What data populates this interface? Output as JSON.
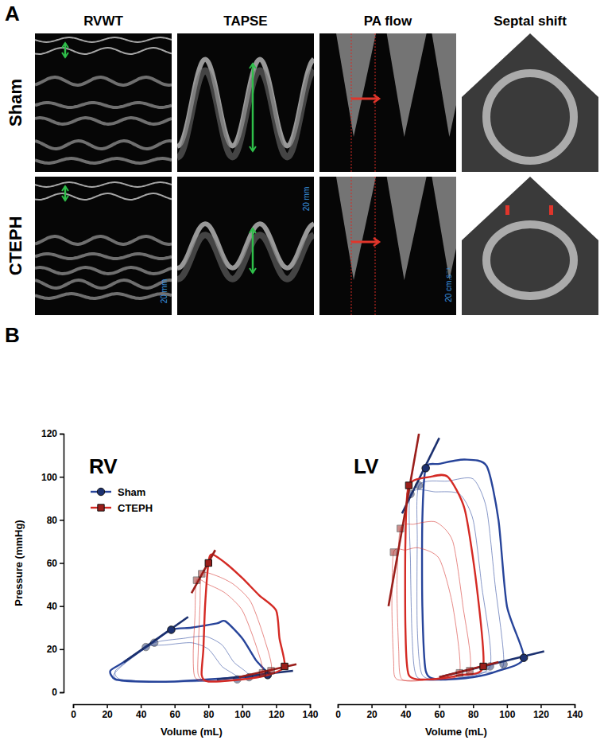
{
  "panel_a": {
    "label": "A",
    "columns": [
      "RVWT",
      "TAPSE",
      "PA flow",
      "Septal shift"
    ],
    "rows": [
      "Sham",
      "CTEPH"
    ],
    "scale_labels": [
      "20 mm",
      "20 mm",
      "20 cm.s⁻¹"
    ]
  },
  "panel_b": {
    "label": "B"
  },
  "chart_data": [
    {
      "type": "line",
      "title": "RV",
      "x_label": "Volume (mL)",
      "y_label": "Pressure (mmHg)",
      "xlim": [
        0,
        140
      ],
      "xticks": [
        0,
        20,
        40,
        60,
        80,
        100,
        120,
        140
      ],
      "ylim": [
        0,
        120
      ],
      "yticks": [
        0,
        20,
        40,
        60,
        80,
        100,
        120
      ],
      "legend": "top-left",
      "series": [
        {
          "name": "Sham",
          "color": "#27449a",
          "marker": "circle",
          "loops": [
            {
              "x": [
                115,
                108,
                100,
                90,
                85,
                70,
                58,
                45,
                30,
                22,
                25,
                40,
                60,
                80,
                100
              ],
              "values": [
                8,
                15,
                25,
                33,
                32,
                30,
                29,
                22,
                14,
                10,
                6,
                5,
                5,
                6,
                7
              ]
            },
            {
              "x": [
                104,
                95,
                88,
                78,
                65,
                48,
                35,
                25,
                28,
                50,
                75
              ],
              "values": [
                7,
                14,
                22,
                26,
                25,
                23,
                16,
                10,
                6,
                5,
                5
              ]
            },
            {
              "x": [
                97,
                88,
                80,
                70,
                55,
                43,
                30,
                24,
                30,
                60
              ],
              "values": [
                6,
                12,
                20,
                23,
                22,
                21,
                13,
                8,
                5,
                5
              ]
            }
          ],
          "espvr": {
            "x": [
              30,
              68
            ],
            "values": [
              14,
              35
            ]
          },
          "edpvr": {
            "x": [
              85,
              130
            ],
            "values": [
              6,
              10
            ]
          },
          "es_points": {
            "x": [
              58,
              48,
              43
            ],
            "values": [
              29,
              23,
              21
            ]
          },
          "ed_points": {
            "x": [
              115,
              104,
              97
            ],
            "values": [
              8,
              7,
              6
            ]
          }
        },
        {
          "name": "CTEPH",
          "color": "#d42a24",
          "marker": "square",
          "loops": [
            {
              "x": [
                125,
                122,
                120,
                110,
                100,
                90,
                82,
                80,
                78,
                77,
                76,
                80,
                100,
                115
              ],
              "values": [
                12,
                25,
                38,
                45,
                53,
                60,
                64,
                60,
                40,
                20,
                8,
                5,
                6,
                8
              ]
            },
            {
              "x": [
                117,
                113,
                105,
                95,
                85,
                76,
                75,
                74,
                74,
                80,
                100
              ],
              "values": [
                10,
                25,
                42,
                50,
                54,
                55,
                40,
                20,
                8,
                5,
                6
              ]
            },
            {
              "x": [
                112,
                108,
                100,
                90,
                80,
                73,
                72,
                71,
                72,
                80,
                100
              ],
              "values": [
                9,
                22,
                38,
                46,
                50,
                52,
                35,
                18,
                7,
                5,
                6
              ]
            }
          ],
          "espvr": {
            "x": [
              70,
              84
            ],
            "values": [
              46,
              66
            ]
          },
          "edpvr": {
            "x": [
              98,
              132
            ],
            "values": [
              7,
              13
            ]
          },
          "es_points": {
            "x": [
              80,
              76,
              73
            ],
            "values": [
              60,
              55,
              52
            ]
          },
          "ed_points": {
            "x": [
              125,
              117,
              112
            ],
            "values": [
              12,
              10,
              9
            ]
          }
        }
      ]
    },
    {
      "type": "line",
      "title": "LV",
      "x_label": "Volume (mL)",
      "xlim": [
        0,
        140
      ],
      "xticks": [
        0,
        20,
        40,
        60,
        80,
        100,
        120,
        140
      ],
      "ylim": [
        0,
        120
      ],
      "tick_labels": "x",
      "series": [
        {
          "name": "Sham",
          "color": "#27449a",
          "marker": "circle",
          "loops": [
            {
              "x": [
                110,
                100,
                95,
                88,
                75,
                60,
                52,
                50,
                50,
                52,
                60,
                80,
                95
              ],
              "values": [
                16,
                40,
                80,
                105,
                108,
                106,
                104,
                80,
                40,
                10,
                6,
                7,
                10
              ]
            },
            {
              "x": [
                98,
                93,
                88,
                80,
                65,
                48,
                47,
                47,
                50,
                65,
                85
              ],
              "values": [
                13,
                50,
                85,
                99,
                98,
                96,
                70,
                30,
                8,
                6,
                9
              ]
            },
            {
              "x": [
                90,
                85,
                80,
                72,
                58,
                43,
                43,
                44,
                47,
                65
              ],
              "values": [
                12,
                50,
                80,
                92,
                93,
                92,
                60,
                25,
                7,
                6
              ]
            }
          ],
          "espvr": {
            "x": [
              38,
              60
            ],
            "values": [
              83,
              118
            ]
          },
          "edpvr": {
            "x": [
              60,
              122
            ],
            "values": [
              7,
              19
            ]
          },
          "es_points": {
            "x": [
              52,
              48,
              43
            ],
            "values": [
              104,
              96,
              92
            ]
          },
          "ed_points": {
            "x": [
              110,
              98,
              90
            ],
            "values": [
              16,
              13,
              12
            ]
          }
        },
        {
          "name": "CTEPH",
          "color": "#d42a24",
          "marker": "square",
          "loops": [
            {
              "x": [
                86,
                82,
                75,
                65,
                55,
                42,
                40,
                40,
                42,
                55,
                72
              ],
              "values": [
                12,
                50,
                85,
                100,
                100,
                96,
                70,
                30,
                8,
                6,
                8
              ]
            },
            {
              "x": [
                78,
                74,
                68,
                58,
                45,
                37,
                35,
                36,
                38,
                55
              ],
              "values": [
                10,
                40,
                70,
                79,
                78,
                76,
                50,
                20,
                6,
                6
              ]
            },
            {
              "x": [
                72,
                68,
                60,
                48,
                40,
                33,
                32,
                33,
                35,
                55
              ],
              "values": [
                9,
                40,
                62,
                67,
                66,
                65,
                40,
                15,
                6,
                6
              ]
            }
          ],
          "espvr": {
            "x": [
              30,
              48
            ],
            "values": [
              40,
              120
            ]
          },
          "edpvr": {
            "x": [
              60,
              95
            ],
            "values": [
              7,
              14
            ]
          },
          "es_points": {
            "x": [
              42,
              37,
              33
            ],
            "values": [
              96,
              76,
              65
            ]
          },
          "ed_points": {
            "x": [
              86,
              78,
              72
            ],
            "values": [
              12,
              10,
              9
            ]
          }
        }
      ]
    }
  ]
}
